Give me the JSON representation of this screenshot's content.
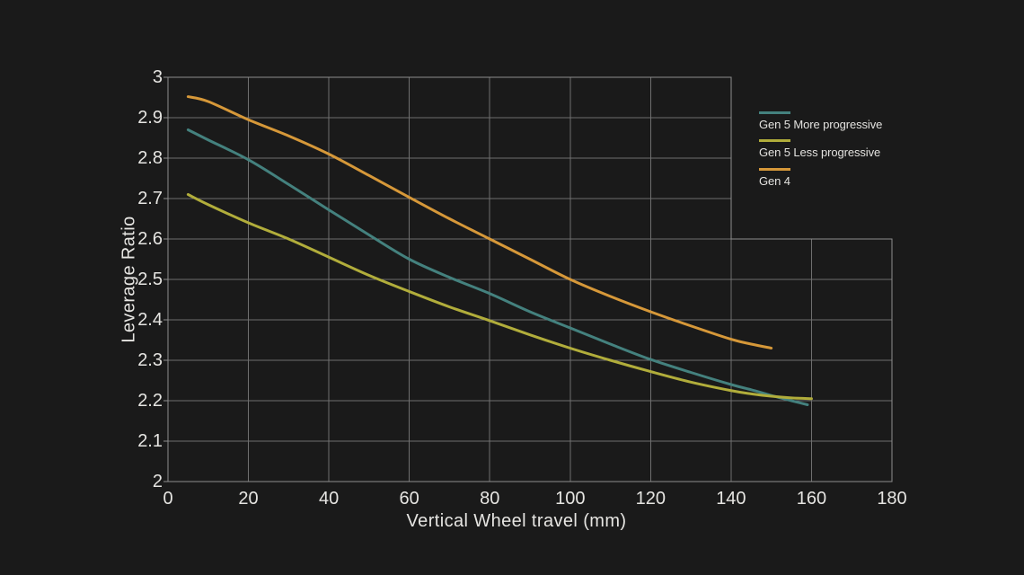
{
  "chart_data": {
    "type": "line",
    "title": "",
    "xlabel": "Vertical Wheel travel (mm)",
    "ylabel": "Leverage Ratio",
    "xlim": [
      0,
      180
    ],
    "ylim": [
      2,
      3
    ],
    "x_tick_labels": [
      "0",
      "20",
      "40",
      "60",
      "80",
      "100",
      "120",
      "140",
      "160",
      "180"
    ],
    "y_tick_labels": [
      "2",
      "2.1",
      "2.2",
      "2.3",
      "2.4",
      "2.5",
      "2.6",
      "2.7",
      "2.8",
      "2.9",
      "3"
    ],
    "grid": "on",
    "grid_step": {
      "note": "plot region is L-shaped: above y=2.6 the grid ends at x=140, below y=2.6 it extends to x=180",
      "x": 140,
      "y": 2.6
    },
    "legend_position": "top-right notch outside upper grid",
    "series": [
      {
        "name": "Gen 5 More progressive",
        "color": "#44817e",
        "x": [
          5,
          10,
          20,
          30,
          40,
          50,
          60,
          70,
          80,
          90,
          100,
          110,
          120,
          130,
          140,
          145,
          150,
          155,
          159
        ],
        "y": [
          2.87,
          2.845,
          2.796,
          2.735,
          2.672,
          2.61,
          2.55,
          2.505,
          2.465,
          2.42,
          2.38,
          2.34,
          2.302,
          2.27,
          2.24,
          2.227,
          2.213,
          2.2,
          2.19
        ]
      },
      {
        "name": "Gen 5 Less progressive",
        "color": "#b1ad3b",
        "x": [
          5,
          10,
          20,
          30,
          40,
          50,
          60,
          70,
          80,
          90,
          100,
          110,
          120,
          130,
          140,
          145,
          150,
          155,
          160
        ],
        "y": [
          2.71,
          2.685,
          2.64,
          2.6,
          2.555,
          2.51,
          2.47,
          2.432,
          2.398,
          2.363,
          2.33,
          2.3,
          2.272,
          2.246,
          2.225,
          2.217,
          2.211,
          2.207,
          2.205
        ]
      },
      {
        "name": "Gen 4",
        "color": "#d69839",
        "x": [
          5,
          10,
          20,
          30,
          40,
          50,
          60,
          70,
          80,
          90,
          100,
          110,
          120,
          130,
          140,
          145,
          150
        ],
        "y": [
          2.952,
          2.94,
          2.895,
          2.855,
          2.81,
          2.757,
          2.703,
          2.65,
          2.6,
          2.55,
          2.5,
          2.458,
          2.42,
          2.385,
          2.352,
          2.34,
          2.33
        ]
      }
    ]
  },
  "colors": {
    "background": "#1a1a1a",
    "grid_inner": "#6f6f6f",
    "grid_border": "#8d8d8d",
    "text": "#e6e5e2"
  }
}
